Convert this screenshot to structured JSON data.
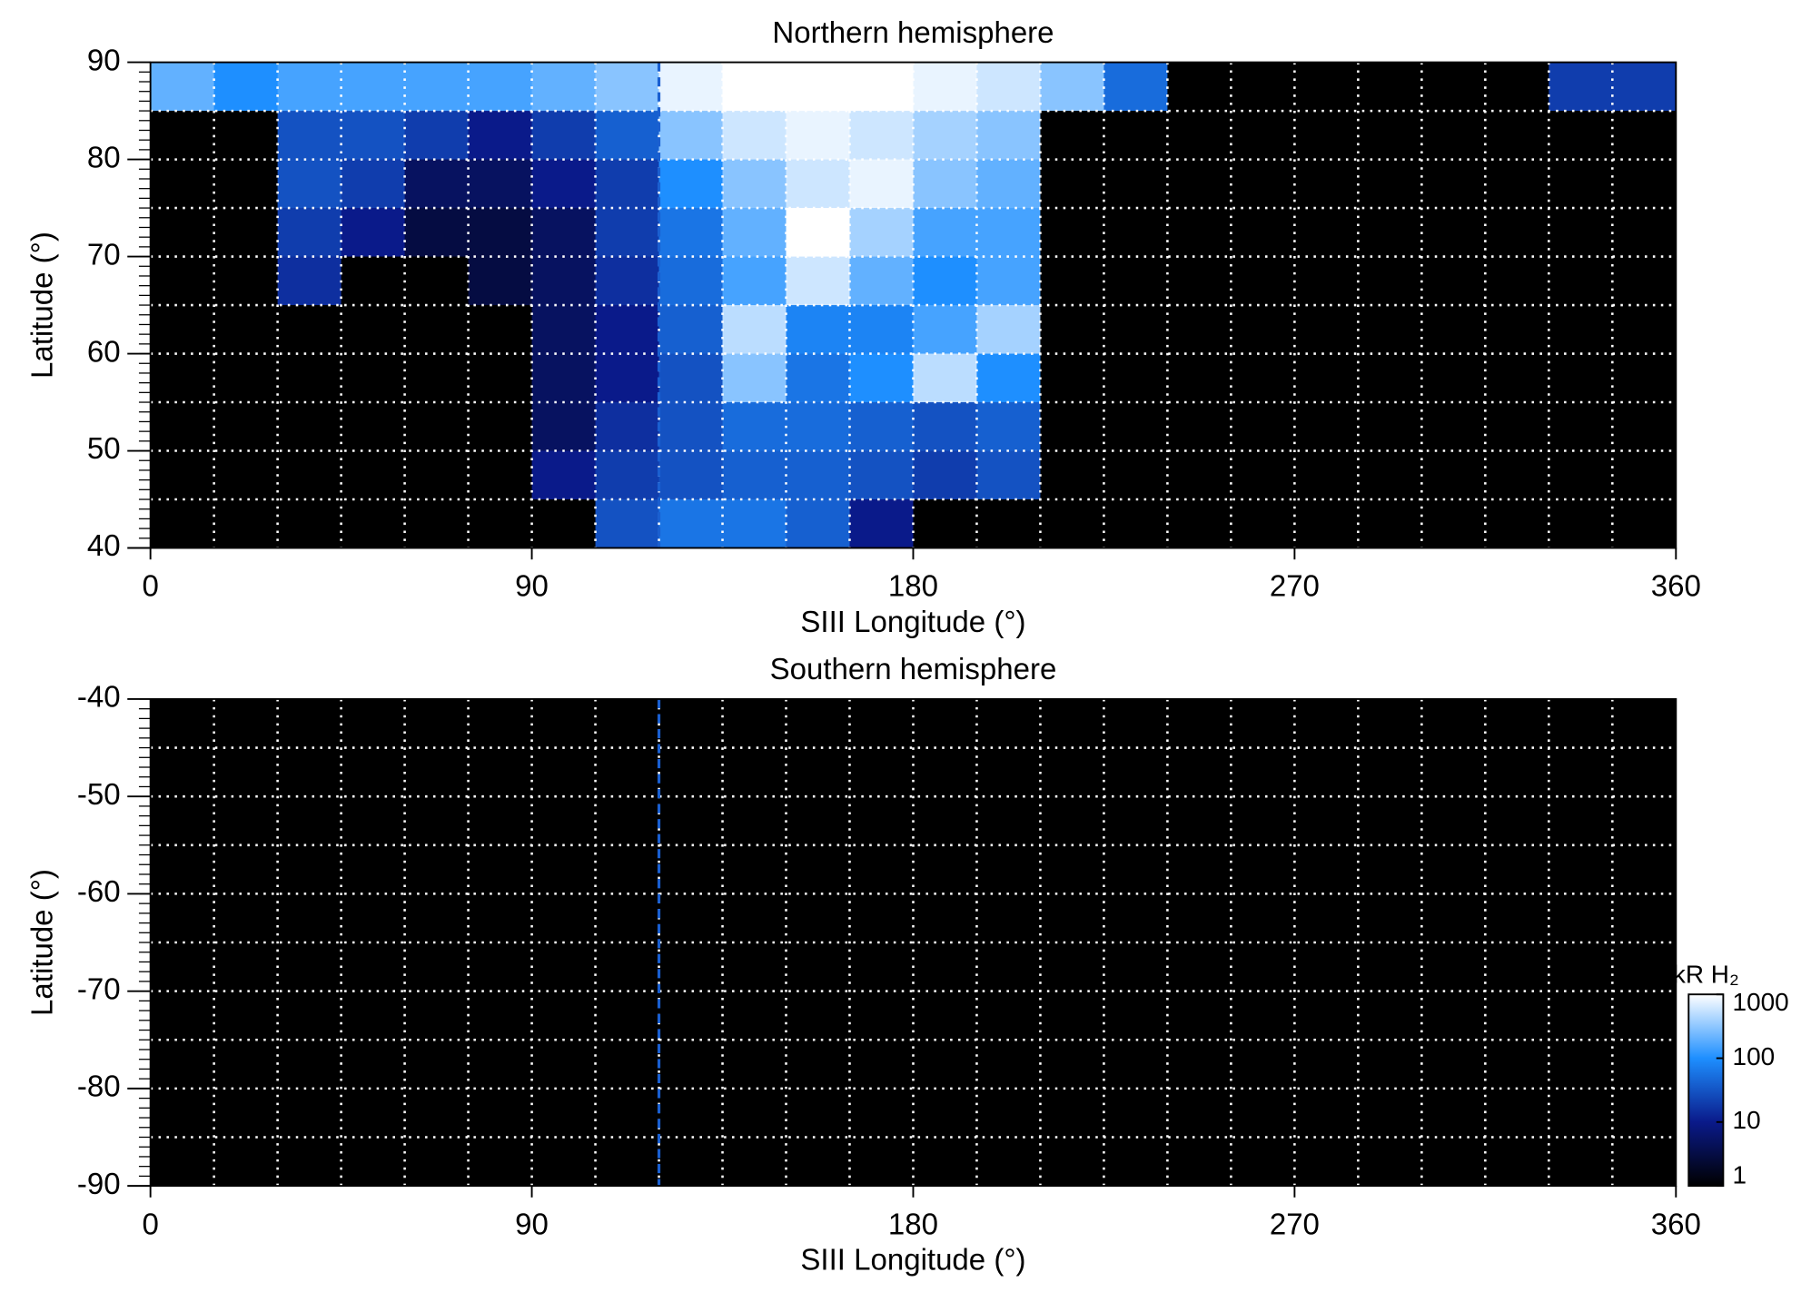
{
  "chart_data": [
    {
      "type": "heatmap",
      "title": "Northern hemisphere",
      "xlabel": "SIII Longitude (°)",
      "ylabel": "Latitude (°)",
      "xlim": [
        0,
        360
      ],
      "xticks": [
        0,
        90,
        180,
        270,
        360
      ],
      "ylim": [
        40,
        90
      ],
      "yticks": [
        40,
        50,
        60,
        70,
        80,
        90
      ],
      "grid_x_step": 15,
      "grid_y_step": 5,
      "yminor_step": 1,
      "vline_x": 120,
      "vline_color": "#1a5fd0",
      "colormap": [
        "#000000",
        "#0a1a8a",
        "#1e8fff",
        "#ffffff"
      ],
      "zlim": [
        1,
        1000
      ],
      "x_edges": [
        0,
        15,
        30,
        45,
        60,
        75,
        90,
        105,
        120,
        135,
        150,
        165,
        180,
        195,
        210,
        225,
        240,
        255,
        270,
        285,
        300,
        315,
        330,
        345,
        360
      ],
      "y_edges": [
        90,
        85,
        80,
        75,
        70,
        65,
        60,
        55,
        50,
        45,
        40
      ],
      "z": [
        [
          200,
          100,
          150,
          150,
          150,
          150,
          200,
          300,
          800,
          1000,
          1000,
          1000,
          800,
          600,
          300,
          50,
          1,
          1,
          1,
          1,
          1,
          1,
          20,
          20
        ],
        [
          1,
          1,
          30,
          30,
          20,
          10,
          20,
          40,
          300,
          600,
          800,
          600,
          400,
          300,
          1,
          1,
          1,
          1,
          1,
          1,
          1,
          1,
          1,
          1
        ],
        [
          1,
          1,
          30,
          20,
          5,
          5,
          10,
          20,
          100,
          300,
          600,
          800,
          300,
          200,
          1,
          1,
          1,
          1,
          1,
          1,
          1,
          1,
          1,
          1
        ],
        [
          1,
          1,
          20,
          10,
          3,
          3,
          5,
          20,
          60,
          200,
          1000,
          400,
          150,
          150,
          1,
          1,
          1,
          1,
          1,
          1,
          1,
          1,
          1,
          1
        ],
        [
          1,
          1,
          15,
          1,
          1,
          3,
          5,
          15,
          50,
          150,
          600,
          200,
          100,
          150,
          1,
          1,
          1,
          1,
          1,
          1,
          1,
          1,
          1,
          1
        ],
        [
          1,
          1,
          1,
          1,
          1,
          1,
          5,
          10,
          40,
          500,
          80,
          80,
          150,
          400,
          1,
          1,
          1,
          1,
          1,
          1,
          1,
          1,
          1,
          1
        ],
        [
          1,
          1,
          1,
          1,
          1,
          1,
          5,
          10,
          30,
          300,
          60,
          100,
          500,
          100,
          1,
          1,
          1,
          1,
          1,
          1,
          1,
          1,
          1,
          1
        ],
        [
          1,
          1,
          1,
          1,
          1,
          1,
          5,
          15,
          30,
          50,
          50,
          40,
          30,
          40,
          1,
          1,
          1,
          1,
          1,
          1,
          1,
          1,
          1,
          1
        ],
        [
          1,
          1,
          1,
          1,
          1,
          1,
          10,
          20,
          30,
          40,
          40,
          30,
          20,
          30,
          1,
          1,
          1,
          1,
          1,
          1,
          1,
          1,
          1,
          1
        ],
        [
          1,
          1,
          1,
          1,
          1,
          1,
          1,
          30,
          60,
          60,
          40,
          10,
          1,
          1,
          1,
          1,
          1,
          1,
          1,
          1,
          1,
          1,
          1,
          1
        ]
      ]
    },
    {
      "type": "heatmap",
      "title": "Southern hemisphere",
      "xlabel": "SIII Longitude (°)",
      "ylabel": "Latitude (°)",
      "xlim": [
        0,
        360
      ],
      "xticks": [
        0,
        90,
        180,
        270,
        360
      ],
      "ylim": [
        -90,
        -40
      ],
      "yticks": [
        -90,
        -80,
        -70,
        -60,
        -50,
        -40
      ],
      "grid_x_step": 15,
      "grid_y_step": 5,
      "yminor_step": 1,
      "vline_x": 120,
      "vline_color": "#1a5fd0",
      "colorbar": {
        "label": "kR H₂",
        "log": true,
        "range": [
          1,
          1000
        ],
        "ticks": [
          1,
          10,
          100,
          1000
        ],
        "colors": [
          "#000000",
          "#0a1a8a",
          "#1e8fff",
          "#ffffff"
        ]
      }
    }
  ]
}
